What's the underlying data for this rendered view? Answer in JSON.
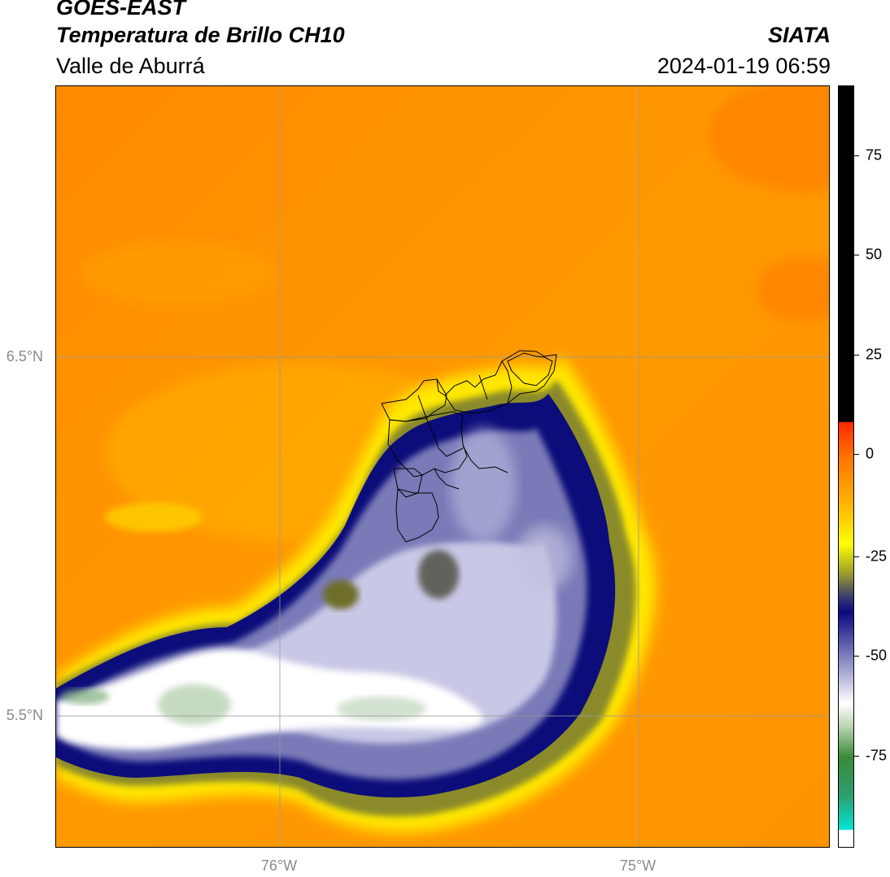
{
  "header": {
    "title_line1": "GOES-EAST",
    "title_line2": "Temperatura de Brillo CH10",
    "organization": "SIATA",
    "subtitle": "Valle de Aburrá",
    "datetime": "2024-01-19 06:59"
  },
  "map": {
    "lat_labels": [
      "6.5°N",
      "5.5°N"
    ],
    "lon_labels": [
      "76°W",
      "75°W"
    ],
    "background_color": "#ff8c00",
    "overlay": "municipal-boundaries-valle-de-aburra"
  },
  "colorbar": {
    "tick_labels": [
      "75",
      "50",
      "25",
      "0",
      "-25",
      "-50",
      "-75"
    ],
    "colors": {
      "warm_top": "#000000",
      "red": "#ff2a00",
      "orange": "#ff8c00",
      "yellow": "#ffff00",
      "olive": "#6e6e1e",
      "navy": "#0a0a78",
      "lavender": "#b4b4dc",
      "white": "#ffffff",
      "green": "#2e8b2e",
      "cyan": "#00e5d4"
    }
  }
}
